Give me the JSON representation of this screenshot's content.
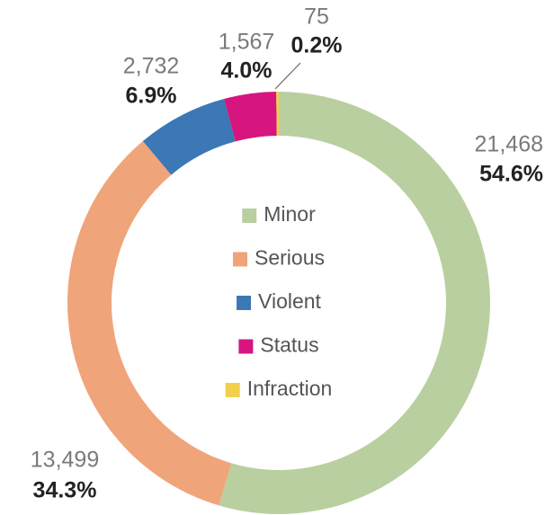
{
  "chart_data": {
    "type": "donut",
    "categories": [
      "Minor",
      "Serious",
      "Violent",
      "Status",
      "Infraction"
    ],
    "values": [
      21468,
      13499,
      2732,
      1567,
      75
    ],
    "value_labels": [
      "21,468",
      "13,499",
      "2,732",
      "1,567",
      "75"
    ],
    "percent_labels": [
      "54.6%",
      "34.3%",
      "6.9%",
      "4.0%",
      "0.2%"
    ],
    "colors": [
      "#b9cfa0",
      "#f0a47a",
      "#3b78b5",
      "#d6157f",
      "#f2d04b"
    ],
    "legend": "center"
  }
}
